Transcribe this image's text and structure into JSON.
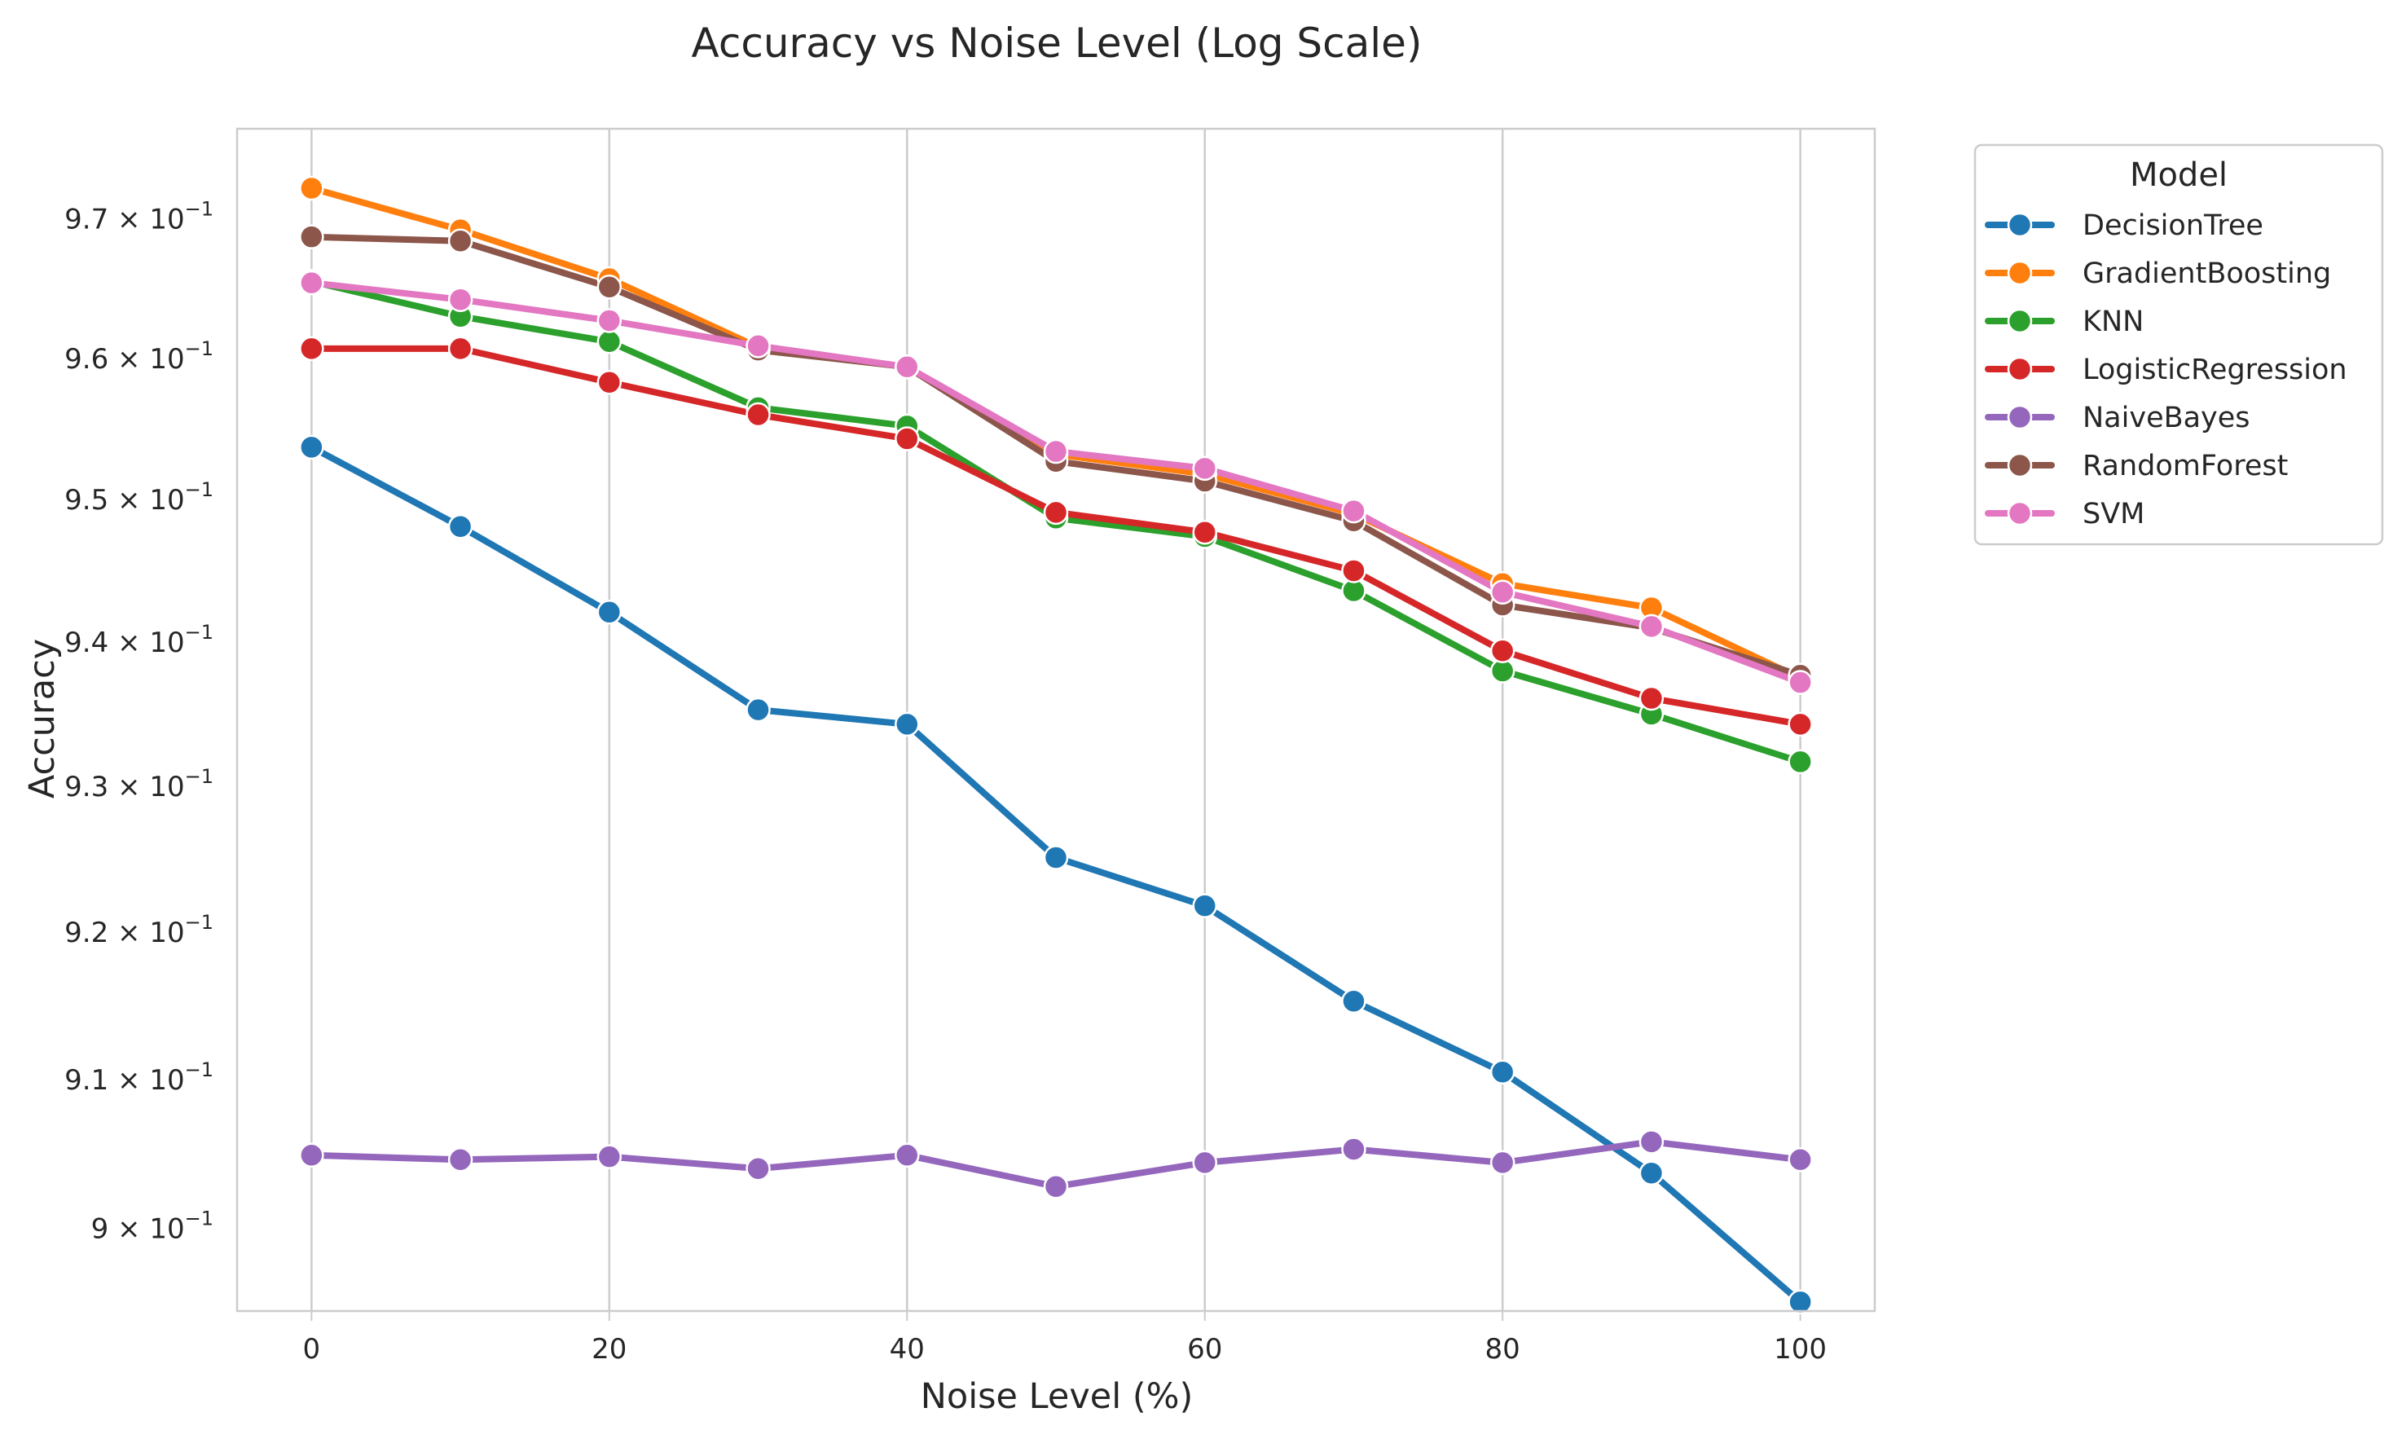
{
  "chart_data": {
    "type": "line",
    "title": "Accuracy vs Noise Level (Log Scale)",
    "xlabel": "Noise Level (%)",
    "ylabel": "Accuracy",
    "yscale": "log",
    "xlim": [
      -5,
      105
    ],
    "ylim": [
      0.8945,
      0.9765
    ],
    "grid": "x-only",
    "legend_position": "outside-top-right",
    "legend_title": "Model",
    "x": [
      0,
      10,
      20,
      30,
      40,
      50,
      60,
      70,
      80,
      90,
      100
    ],
    "x_ticks": [
      0,
      20,
      40,
      60,
      80,
      100
    ],
    "x_tick_labels": [
      "0",
      "20",
      "40",
      "60",
      "80",
      "100"
    ],
    "y_ticks": [
      {
        "value": 0.9,
        "mantissa": "9",
        "base": "10",
        "exp": "−1"
      },
      {
        "value": 0.91,
        "mantissa": "9.1",
        "base": "10",
        "exp": "−1"
      },
      {
        "value": 0.92,
        "mantissa": "9.2",
        "base": "10",
        "exp": "−1"
      },
      {
        "value": 0.93,
        "mantissa": "9.3",
        "base": "10",
        "exp": "−1"
      },
      {
        "value": 0.94,
        "mantissa": "9.4",
        "base": "10",
        "exp": "−1"
      },
      {
        "value": 0.95,
        "mantissa": "9.5",
        "base": "10",
        "exp": "−1"
      },
      {
        "value": 0.96,
        "mantissa": "9.6",
        "base": "10",
        "exp": "−1"
      },
      {
        "value": 0.97,
        "mantissa": "9.7",
        "base": "10",
        "exp": "−1"
      }
    ],
    "series": [
      {
        "name": "DecisionTree",
        "color": "#1f77b4",
        "values": [
          0.9537,
          0.9481,
          0.9421,
          0.9353,
          0.9343,
          0.9251,
          0.9218,
          0.9153,
          0.9105,
          0.9037,
          0.8951
        ]
      },
      {
        "name": "GradientBoosting",
        "color": "#ff7f0e",
        "values": [
          0.9722,
          0.9692,
          0.9657,
          0.9608,
          0.9594,
          0.9532,
          0.9518,
          0.949,
          0.9441,
          0.9424,
          0.9375
        ]
      },
      {
        "name": "KNN",
        "color": "#2ca02c",
        "values": [
          0.9655,
          0.963,
          0.9612,
          0.9565,
          0.9552,
          0.9487,
          0.9474,
          0.9436,
          0.938,
          0.935,
          0.9317
        ]
      },
      {
        "name": "LogisticRegression",
        "color": "#d62728",
        "values": [
          0.9607,
          0.9607,
          0.9583,
          0.956,
          0.9543,
          0.9491,
          0.9477,
          0.945,
          0.9394,
          0.9361,
          0.9343
        ]
      },
      {
        "name": "NaiveBayes",
        "color": "#9467bd",
        "values": [
          0.9049,
          0.9046,
          0.9048,
          0.904,
          0.9049,
          0.9028,
          0.9044,
          0.9053,
          0.9044,
          0.9058,
          0.9046
        ]
      },
      {
        "name": "RandomForest",
        "color": "#8c564b",
        "values": [
          0.9687,
          0.9684,
          0.9651,
          0.9606,
          0.9594,
          0.9527,
          0.9513,
          0.9485,
          0.9426,
          0.941,
          0.9377
        ]
      },
      {
        "name": "SVM",
        "color": "#e377c2",
        "values": [
          0.9654,
          0.9642,
          0.9627,
          0.9609,
          0.9594,
          0.9534,
          0.9522,
          0.9492,
          0.9435,
          0.9411,
          0.9372
        ]
      }
    ]
  }
}
